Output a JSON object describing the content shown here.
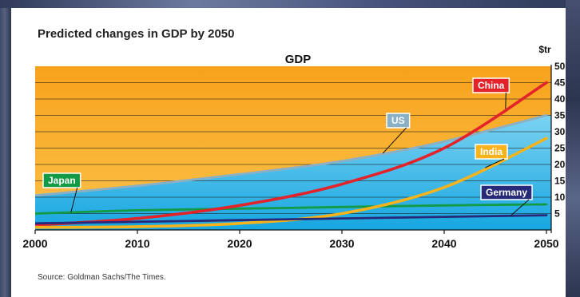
{
  "chart_data": {
    "type": "line",
    "title": "Predicted changes in GDP by 2050",
    "plot_title": "GDP",
    "y_unit": "$tr",
    "source": "Source: Goldman Sachs/The Times.",
    "xlim": [
      2000,
      2050
    ],
    "ylim": [
      0,
      50
    ],
    "x_ticks": [
      "2000",
      "2010",
      "2020",
      "2030",
      "2040",
      "2050"
    ],
    "y_ticks": [
      "5",
      "10",
      "15",
      "20",
      "25",
      "30",
      "35",
      "40",
      "45",
      "50"
    ],
    "x": [
      2000,
      2010,
      2020,
      2030,
      2040,
      2050
    ],
    "series": [
      {
        "name": "Japan",
        "color": "#139a45",
        "values": [
          5,
          6,
          6.5,
          7,
          7.5,
          7.8
        ]
      },
      {
        "name": "US",
        "color": "#8ab0c6",
        "values": [
          10.5,
          13.5,
          17,
          21,
          27,
          35
        ]
      },
      {
        "name": "China",
        "color": "#e3222a",
        "values": [
          1.5,
          3.5,
          7.5,
          14,
          25,
          45
        ]
      },
      {
        "name": "India",
        "color": "#f7b31b",
        "values": [
          0.8,
          1,
          2,
          5,
          13,
          28
        ]
      },
      {
        "name": "Germany",
        "color": "#262a78",
        "values": [
          2,
          2.5,
          3,
          3.5,
          4,
          4.5
        ]
      }
    ],
    "area_color_top": "#f7a21c",
    "area_color_bottom": "#33b6e6",
    "grid": true,
    "legend": "inline labels"
  }
}
